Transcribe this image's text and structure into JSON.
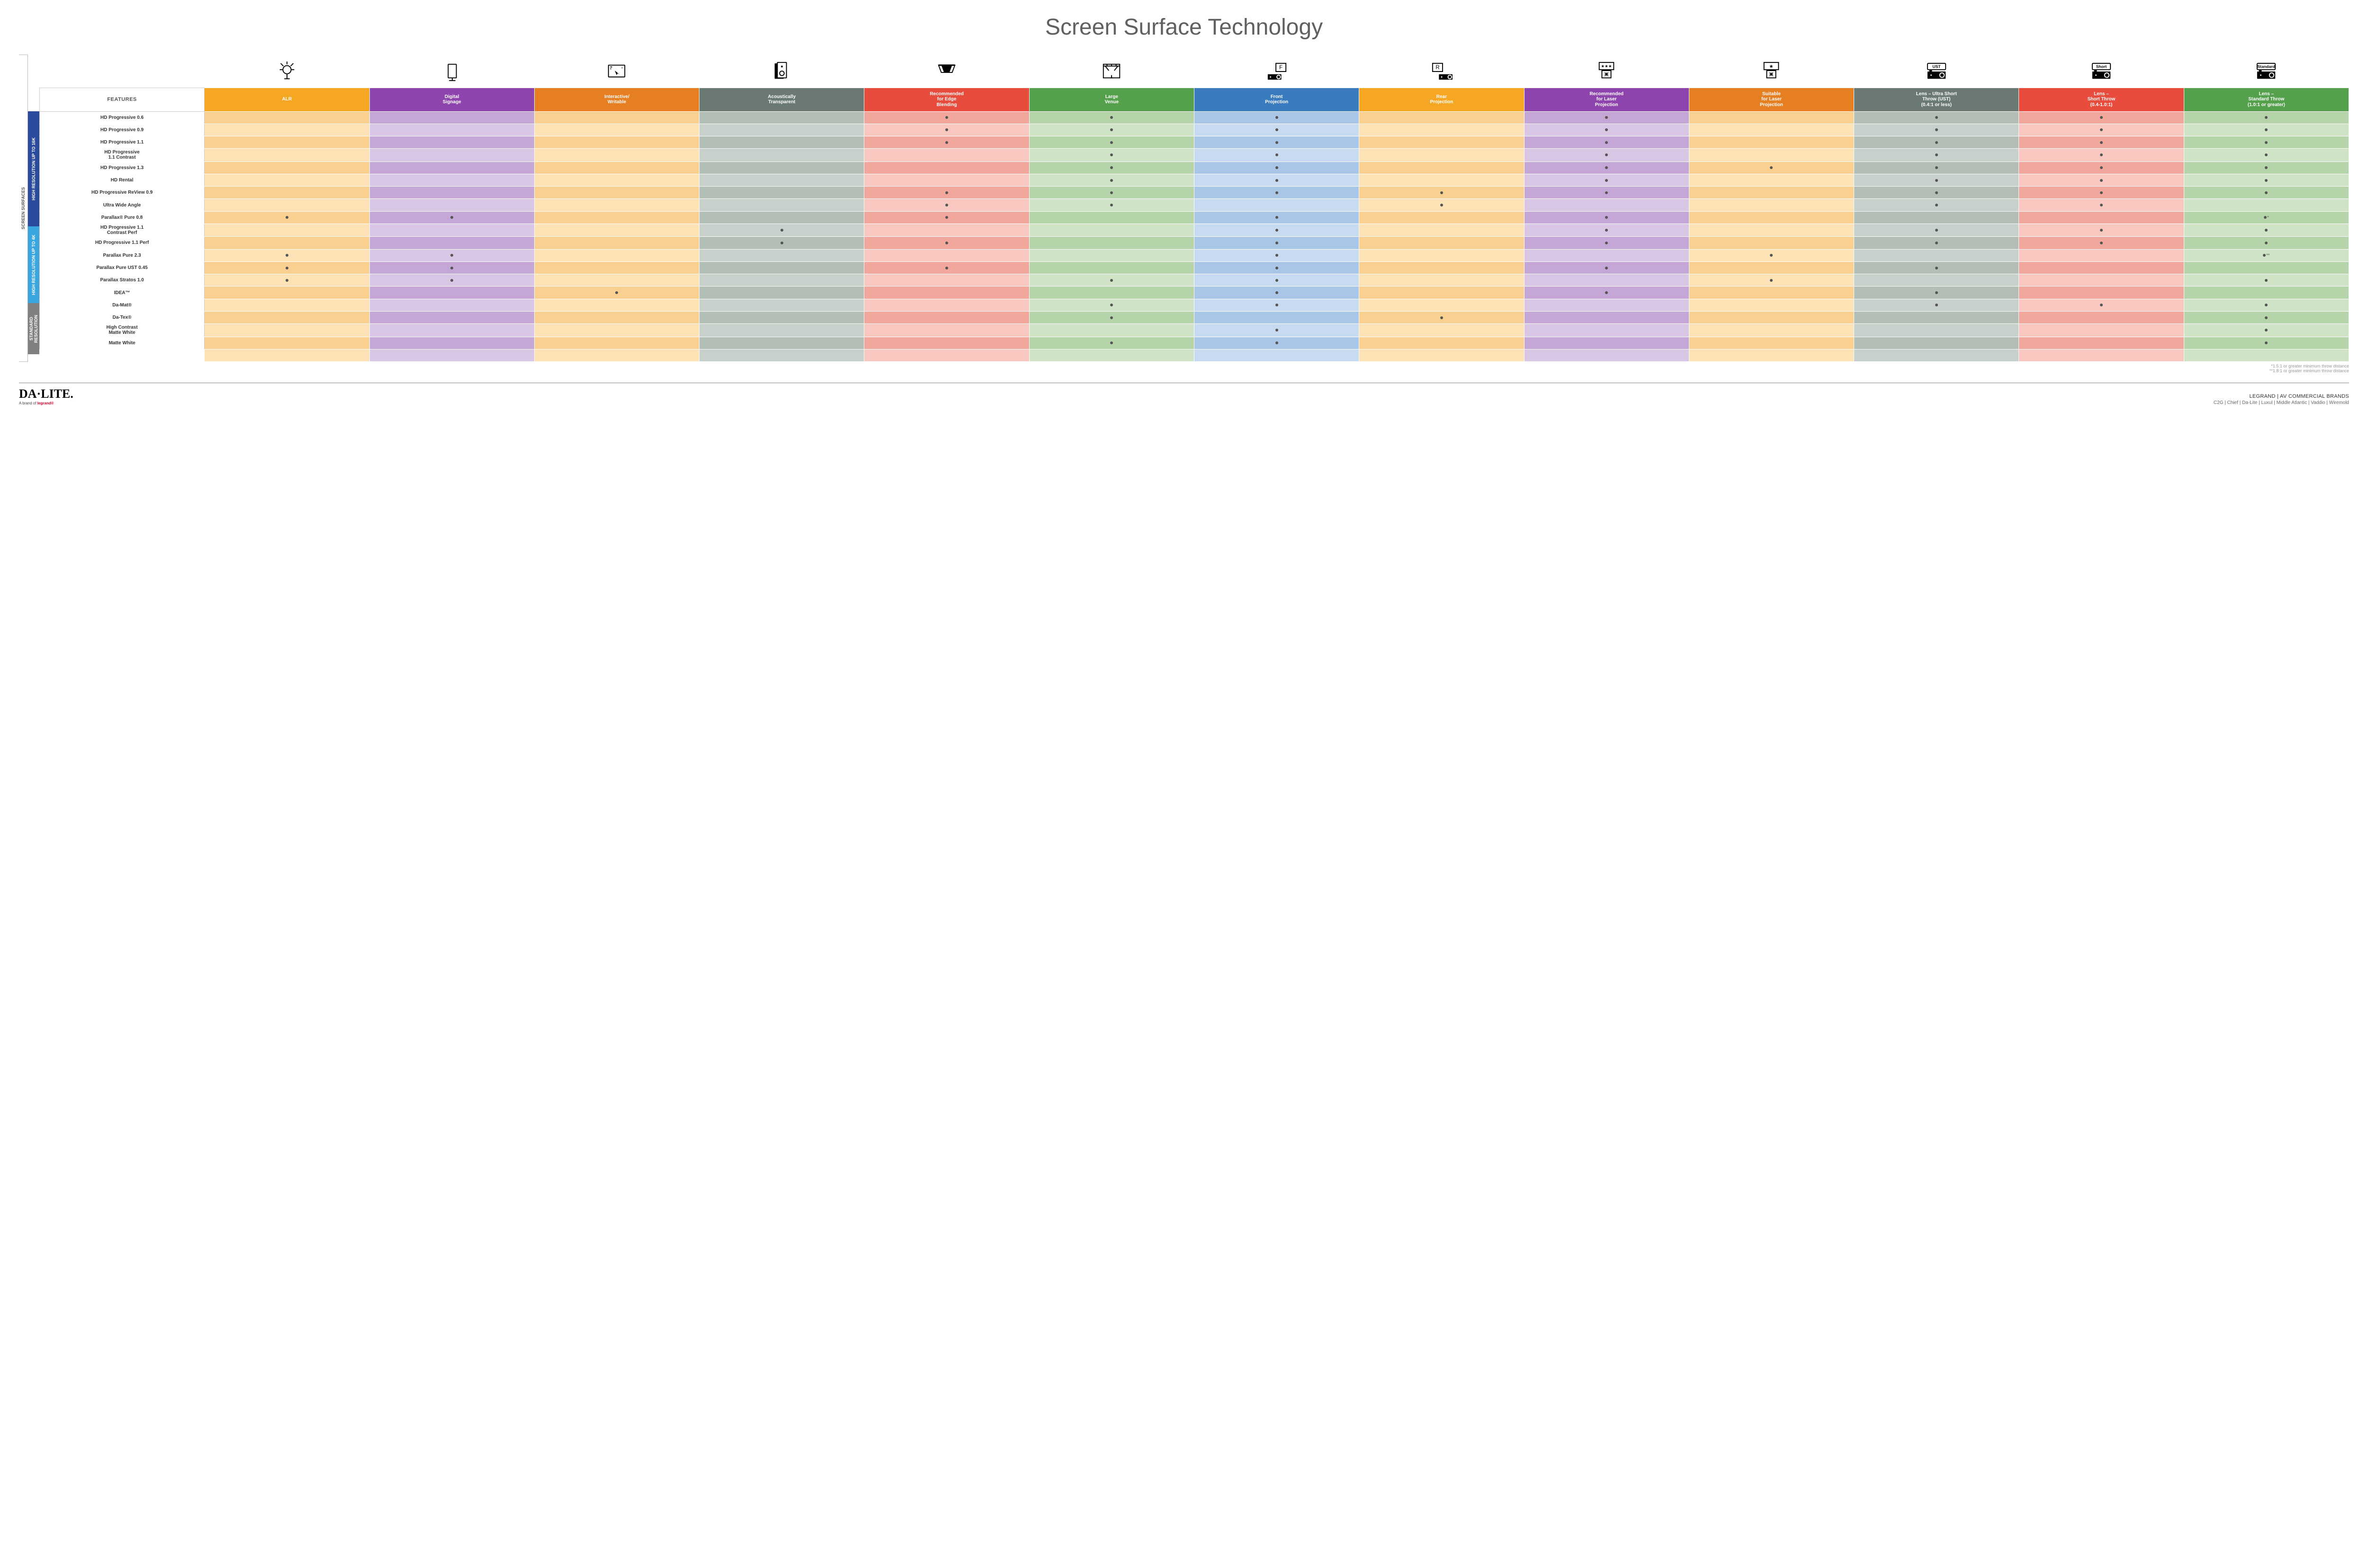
{
  "title": "Screen Surface Technology",
  "title_fontsize": 48,
  "sideLabel": "SCREEN SURFACES",
  "columns": [
    {
      "key": "features",
      "label": "FEATURES",
      "bg": "#ffffff"
    },
    {
      "key": "alr",
      "label": "ALR",
      "bg": "#f5a623",
      "light": "#fce2b5",
      "dark": "#fad090"
    },
    {
      "key": "digsign",
      "label": "Digital\nSignage",
      "bg": "#8e44ad",
      "light": "#d9c6e4",
      "dark": "#c5a7d7"
    },
    {
      "key": "interactive",
      "label": "Interactive/\nWritable",
      "bg": "#e67e22",
      "light": "#fce2b5",
      "dark": "#fad090"
    },
    {
      "key": "acoustic",
      "label": "Acoustically\nTransparent",
      "bg": "#6a7a72",
      "light": "#c8d0cb",
      "dark": "#b2beb6"
    },
    {
      "key": "edge",
      "label": "Recommended\nfor Edge\nBlending",
      "bg": "#e74c3c",
      "light": "#f7c7c0",
      "dark": "#f2a79c"
    },
    {
      "key": "venue",
      "label": "Large\nVenue",
      "bg": "#55a04c",
      "light": "#cfe3c6",
      "dark": "#b6d4a9"
    },
    {
      "key": "front",
      "label": "Front\nProjection",
      "bg": "#3a7bbf",
      "light": "#c8daf0",
      "dark": "#aac6e6"
    },
    {
      "key": "rear",
      "label": "Rear\nProjection",
      "bg": "#f5a623",
      "light": "#fce2b5",
      "dark": "#fad090"
    },
    {
      "key": "reclaser",
      "label": "Recommended\nfor Laser\nProjection",
      "bg": "#8e44ad",
      "light": "#d9c6e4",
      "dark": "#c5a7d7"
    },
    {
      "key": "suitlaser",
      "label": "Suitable\nfor Laser\nProjection",
      "bg": "#e67e22",
      "light": "#fce2b5",
      "dark": "#fad090"
    },
    {
      "key": "lensust",
      "label": "Lens – Ultra Short\nThrow (UST)\n(0.4:1 or less)",
      "bg": "#6a7a72",
      "light": "#c8d0cb",
      "dark": "#b2beb6"
    },
    {
      "key": "lensshort",
      "label": "Lens –\nShort Throw\n(0.4-1.0:1)",
      "bg": "#e74c3c",
      "light": "#f7c7c0",
      "dark": "#f2a79c"
    },
    {
      "key": "lensstd",
      "label": "Lens –\nStandard Throw\n(1.0:1 or greater)",
      "bg": "#55a04c",
      "light": "#cfe3c6",
      "dark": "#b6d4a9"
    }
  ],
  "categories": [
    {
      "label": "HIGH RESOLUTION UP TO 16K",
      "bg": "#2a4b9b",
      "rows": [
        {
          "name": "HD Progressive 0.6",
          "dots": [
            0,
            0,
            0,
            0,
            1,
            1,
            1,
            0,
            1,
            0,
            1,
            1,
            1
          ]
        },
        {
          "name": "HD Progressive 0.9",
          "dots": [
            0,
            0,
            0,
            0,
            1,
            1,
            1,
            0,
            1,
            0,
            1,
            1,
            1
          ]
        },
        {
          "name": "HD Progressive 1.1",
          "dots": [
            0,
            0,
            0,
            0,
            1,
            1,
            1,
            0,
            1,
            0,
            1,
            1,
            1
          ]
        },
        {
          "name": "HD Progressive\n1.1 Contrast",
          "dots": [
            0,
            0,
            0,
            0,
            0,
            1,
            1,
            0,
            1,
            0,
            1,
            1,
            1
          ]
        },
        {
          "name": "HD Progressive 1.3",
          "dots": [
            0,
            0,
            0,
            0,
            0,
            1,
            1,
            0,
            1,
            1,
            1,
            1,
            1
          ]
        },
        {
          "name": "HD Rental",
          "dots": [
            0,
            0,
            0,
            0,
            0,
            1,
            1,
            0,
            1,
            0,
            1,
            1,
            1
          ]
        },
        {
          "name": "HD Progressive ReView 0.9",
          "dots": [
            0,
            0,
            0,
            0,
            1,
            1,
            1,
            1,
            1,
            0,
            1,
            1,
            1
          ]
        },
        {
          "name": "Ultra Wide Angle",
          "dots": [
            0,
            0,
            0,
            0,
            1,
            1,
            0,
            1,
            0,
            0,
            1,
            1,
            0
          ]
        },
        {
          "name": "Parallax® Pure 0.8",
          "dots": [
            1,
            1,
            0,
            0,
            1,
            0,
            1,
            0,
            1,
            0,
            0,
            0,
            "•*"
          ]
        }
      ]
    },
    {
      "label": "HIGH RESOLUTION UP TO 4K",
      "bg": "#3aa6e0",
      "rows": [
        {
          "name": "HD Progressive 1.1\nContrast Perf",
          "dots": [
            0,
            0,
            0,
            1,
            0,
            0,
            1,
            0,
            1,
            0,
            1,
            1,
            1
          ]
        },
        {
          "name": "HD Progressive 1.1 Perf",
          "dots": [
            0,
            0,
            0,
            1,
            1,
            0,
            1,
            0,
            1,
            0,
            1,
            1,
            1
          ]
        },
        {
          "name": "Parallax Pure 2.3",
          "dots": [
            1,
            1,
            0,
            0,
            0,
            0,
            1,
            0,
            0,
            1,
            0,
            0,
            "•**"
          ]
        },
        {
          "name": "Parallax Pure UST 0.45",
          "dots": [
            1,
            1,
            0,
            0,
            1,
            0,
            1,
            0,
            1,
            0,
            1,
            0,
            0
          ]
        },
        {
          "name": "Parallax Stratos 1.0",
          "dots": [
            1,
            1,
            0,
            0,
            0,
            1,
            1,
            0,
            0,
            1,
            0,
            0,
            1
          ]
        },
        {
          "name": "IDEA™",
          "dots": [
            0,
            0,
            1,
            0,
            0,
            0,
            1,
            0,
            1,
            0,
            1,
            0,
            0
          ]
        }
      ]
    },
    {
      "label": "STANDARD\nRESOLUTION",
      "bg": "#808080",
      "rows": [
        {
          "name": "Da-Mat®",
          "dots": [
            0,
            0,
            0,
            0,
            0,
            1,
            1,
            0,
            0,
            0,
            1,
            1,
            1
          ]
        },
        {
          "name": "Da-Tex®",
          "dots": [
            0,
            0,
            0,
            0,
            0,
            1,
            0,
            1,
            0,
            0,
            0,
            0,
            1
          ]
        },
        {
          "name": "High Contrast\nMatte White",
          "dots": [
            0,
            0,
            0,
            0,
            0,
            0,
            1,
            0,
            0,
            0,
            0,
            0,
            1
          ]
        },
        {
          "name": "Matte White",
          "dots": [
            0,
            0,
            0,
            0,
            0,
            1,
            1,
            0,
            0,
            0,
            0,
            0,
            1
          ]
        }
      ]
    }
  ],
  "iconLabels": {
    "ust": "UST",
    "short": "Short",
    "std": "Standard",
    "front": "F",
    "rear": "R"
  },
  "footnotes": [
    "*1.5:1 or greater minimum throw distance",
    "**1.8:1 or greater minimum throw distance"
  ],
  "footer": {
    "brandMain": "DA·LITE.",
    "brandSub": "A brand of ",
    "brandSubBold": "legrand®",
    "rightTop": "LEGRAND | AV COMMERCIAL BRANDS",
    "rightBottom": "C2G  |  Chief  |  Da-Lite  |  Luxul  |  Middle Atlantic  |  Vaddio  |  Wiremold"
  }
}
